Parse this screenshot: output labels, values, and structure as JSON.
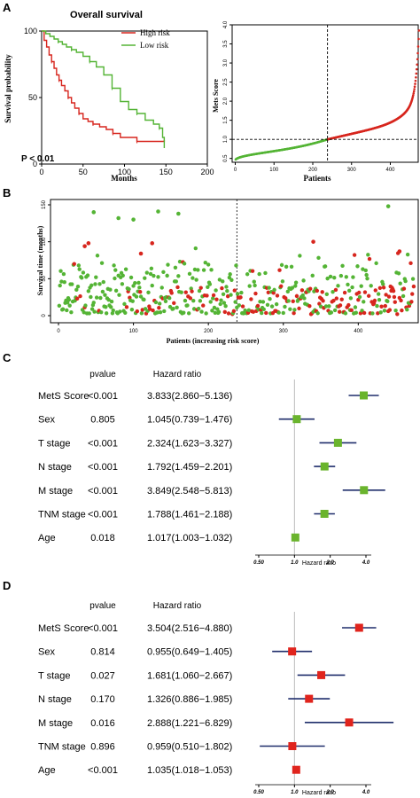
{
  "colors": {
    "red": "#d7261e",
    "green": "#54b435",
    "navy": "#1f2d6b",
    "forest_red": "#e0241d",
    "forest_green": "#6ab42d",
    "axis": "#000000"
  },
  "panel_labels": {
    "a": "A",
    "b": "B",
    "c": "C",
    "d": "D"
  },
  "chart_data": [
    {
      "type": "line",
      "id": "km",
      "title": "Overall survival",
      "xlabel": "Months",
      "ylabel": "Survival probability",
      "xlim": [
        0,
        200
      ],
      "ylim": [
        0,
        100
      ],
      "xticks": [
        "0",
        "50",
        "100",
        "150",
        "200"
      ],
      "yticks": [
        "0",
        "50",
        "100"
      ],
      "annotation": "P < 0.01",
      "series": [
        {
          "name": "High risk",
          "color": "#d7261e",
          "x": [
            0,
            3,
            6,
            9,
            12,
            15,
            18,
            21,
            24,
            28,
            32,
            36,
            40,
            45,
            50,
            56,
            62,
            70,
            78,
            86,
            95,
            105,
            115,
            125,
            135,
            148
          ],
          "y": [
            100,
            93,
            88,
            82,
            77,
            72,
            67,
            63,
            59,
            55,
            50,
            46,
            42,
            38,
            34,
            32,
            30,
            28,
            26,
            23,
            20,
            20,
            17,
            17,
            17,
            18
          ]
        },
        {
          "name": "Low risk",
          "color": "#54b435",
          "x": [
            0,
            5,
            10,
            15,
            20,
            25,
            30,
            36,
            42,
            50,
            58,
            66,
            75,
            85,
            95,
            105,
            115,
            125,
            135,
            142,
            146,
            148
          ],
          "y": [
            100,
            98,
            96,
            94,
            92,
            90,
            88,
            86,
            84,
            81,
            77,
            73,
            67,
            57,
            47,
            41,
            38,
            33,
            30,
            27,
            20,
            12
          ]
        }
      ]
    },
    {
      "type": "scatter",
      "id": "mets-score",
      "xlabel": "Patients",
      "ylabel": "Mets Score",
      "xlim": [
        0,
        480
      ],
      "ylim": [
        0.4,
        4.0
      ],
      "xticks": [
        "0",
        "100",
        "200",
        "300",
        "400"
      ],
      "yticks": [
        "0.5",
        "1.0",
        "1.5",
        "2.0",
        "2.5",
        "3.0",
        "3.5",
        "4.0"
      ],
      "cutoff_x": 238,
      "cutoff_y": 1.0,
      "series": [
        {
          "name": "Low risk",
          "color": "#54b435",
          "x": [
            1,
            238
          ],
          "y": [
            0.45,
            1.0
          ]
        },
        {
          "name": "High risk",
          "color": "#d7261e",
          "x": [
            239,
            474
          ],
          "y": [
            1.0,
            3.9
          ]
        }
      ]
    },
    {
      "type": "scatter",
      "id": "survival-time",
      "xlabel": "Patients (increasing risk score)",
      "ylabel": "Survival time (months)",
      "xlim": [
        0,
        480
      ],
      "ylim": [
        0,
        150
      ],
      "xticks": [
        "0",
        "100",
        "200",
        "300",
        "400"
      ],
      "yticks": [
        "0",
        "50",
        "100",
        "150"
      ],
      "cutoff_x": 238,
      "highlights": [
        {
          "x": 47,
          "y": 140,
          "status": "alive"
        },
        {
          "x": 80,
          "y": 132,
          "status": "alive"
        },
        {
          "x": 100,
          "y": 130,
          "status": "alive"
        },
        {
          "x": 133,
          "y": 141,
          "status": "alive"
        },
        {
          "x": 160,
          "y": 138,
          "status": "alive"
        },
        {
          "x": 440,
          "y": 148,
          "status": "alive"
        },
        {
          "x": 35,
          "y": 94,
          "status": "dead"
        },
        {
          "x": 40,
          "y": 98,
          "status": "dead"
        },
        {
          "x": 110,
          "y": 84,
          "status": "dead"
        },
        {
          "x": 125,
          "y": 98,
          "status": "dead"
        },
        {
          "x": 340,
          "y": 100,
          "status": "dead"
        },
        {
          "x": 455,
          "y": 87,
          "status": "dead"
        }
      ]
    },
    {
      "type": "table",
      "id": "forest-univariate",
      "headers": {
        "pvalue": "pvalue",
        "hr": "Hazard ratio"
      },
      "xlabel": "Hazard ratio",
      "xticks": [
        "0.50",
        "1.0",
        "2.0",
        "4.0"
      ],
      "marker_color": "#6ab42d",
      "rows": [
        {
          "variable": "MetS Score",
          "pvalue": "<0.001",
          "hr_text": "3.833(2.860−5.136)",
          "hr": 3.833,
          "lo": 2.86,
          "hi": 5.136
        },
        {
          "variable": "Sex",
          "pvalue": "0.805",
          "hr_text": "1.045(0.739−1.476)",
          "hr": 1.045,
          "lo": 0.739,
          "hi": 1.476
        },
        {
          "variable": "T stage",
          "pvalue": "<0.001",
          "hr_text": "2.324(1.623−3.327)",
          "hr": 2.324,
          "lo": 1.623,
          "hi": 3.327
        },
        {
          "variable": "N stage",
          "pvalue": "<0.001",
          "hr_text": "1.792(1.459−2.201)",
          "hr": 1.792,
          "lo": 1.459,
          "hi": 2.201
        },
        {
          "variable": "M stage",
          "pvalue": "<0.001",
          "hr_text": "3.849(2.548−5.813)",
          "hr": 3.849,
          "lo": 2.548,
          "hi": 5.813
        },
        {
          "variable": "TNM stage",
          "pvalue": "<0.001",
          "hr_text": "1.788(1.461−2.188)",
          "hr": 1.788,
          "lo": 1.461,
          "hi": 2.188
        },
        {
          "variable": "Age",
          "pvalue": "0.018",
          "hr_text": "1.017(1.003−1.032)",
          "hr": 1.017,
          "lo": 1.003,
          "hi": 1.032
        }
      ]
    },
    {
      "type": "table",
      "id": "forest-multivariate",
      "headers": {
        "pvalue": "pvalue",
        "hr": "Hazard ratio"
      },
      "xlabel": "Hazard ratio",
      "xticks": [
        "0.50",
        "1.0",
        "2.0",
        "4.0"
      ],
      "marker_color": "#e0241d",
      "rows": [
        {
          "variable": "MetS Score",
          "pvalue": "<0.001",
          "hr_text": "3.504(2.516−4.880)",
          "hr": 3.504,
          "lo": 2.516,
          "hi": 4.88
        },
        {
          "variable": "Sex",
          "pvalue": "0.814",
          "hr_text": "0.955(0.649−1.405)",
          "hr": 0.955,
          "lo": 0.649,
          "hi": 1.405
        },
        {
          "variable": "T stage",
          "pvalue": "0.027",
          "hr_text": "1.681(1.060−2.667)",
          "hr": 1.681,
          "lo": 1.06,
          "hi": 2.667
        },
        {
          "variable": "N stage",
          "pvalue": "0.170",
          "hr_text": "1.326(0.886−1.985)",
          "hr": 1.326,
          "lo": 0.886,
          "hi": 1.985
        },
        {
          "variable": "M stage",
          "pvalue": "0.016",
          "hr_text": "2.888(1.221−6.829)",
          "hr": 2.888,
          "lo": 1.221,
          "hi": 6.829
        },
        {
          "variable": "TNM stage",
          "pvalue": "0.896",
          "hr_text": "0.959(0.510−1.802)",
          "hr": 0.959,
          "lo": 0.51,
          "hi": 1.802
        },
        {
          "variable": "Age",
          "pvalue": "<0.001",
          "hr_text": "1.035(1.018−1.053)",
          "hr": 1.035,
          "lo": 1.018,
          "hi": 1.053
        }
      ]
    }
  ]
}
